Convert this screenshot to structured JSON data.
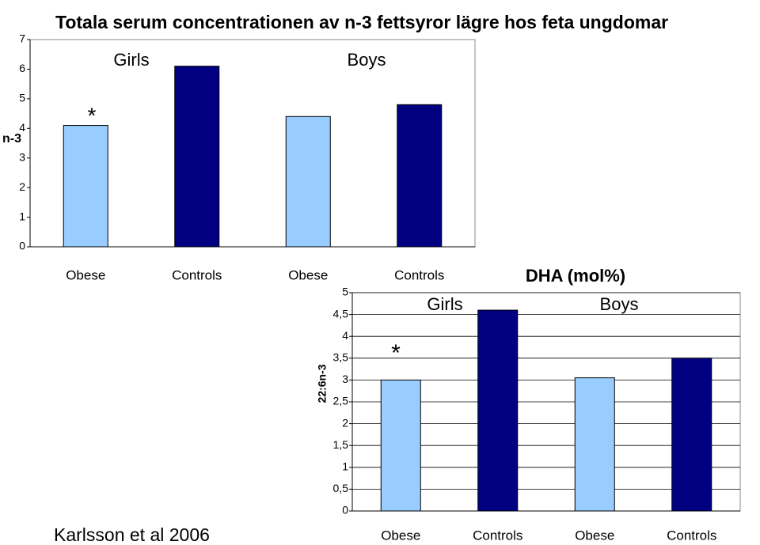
{
  "source": "Karlsson et al 2006",
  "chart_data": [
    {
      "type": "bar",
      "title": "Totala serum concentrationen av n-3 fettsyror lägre hos feta ungdomar",
      "ylabel": "n-3",
      "categories": [
        "Obese",
        "Controls",
        "Obese",
        "Controls"
      ],
      "values": [
        4.1,
        6.1,
        4.4,
        4.8
      ],
      "colors": [
        "#99ccff",
        "#000080",
        "#99ccff",
        "#000080"
      ],
      "ylim": [
        0,
        7
      ],
      "yticks": [
        0,
        1,
        2,
        3,
        4,
        5,
        6,
        7
      ],
      "grid": false,
      "annotations": [
        "Girls",
        "Boys",
        "*"
      ]
    },
    {
      "type": "bar",
      "title": "DHA (mol%)",
      "ylabel": "22:6n-3",
      "categories": [
        "Obese",
        "Controls",
        "Obese",
        "Controls"
      ],
      "values": [
        3.0,
        4.6,
        3.05,
        3.5
      ],
      "colors": [
        "#99ccff",
        "#000080",
        "#99ccff",
        "#000080"
      ],
      "ylim": [
        0,
        5
      ],
      "yticks": [
        0,
        {
          "value": 0.5,
          "label": "0,5"
        },
        1,
        {
          "value": 1.5,
          "label": "1,5"
        },
        2,
        {
          "value": 2.5,
          "label": "2,5"
        },
        3,
        {
          "value": 3.5,
          "label": "3,5"
        },
        4,
        {
          "value": 4.5,
          "label": "4,5"
        },
        5
      ],
      "grid": true,
      "annotations": [
        "Girls",
        "Boys",
        "*"
      ]
    }
  ]
}
